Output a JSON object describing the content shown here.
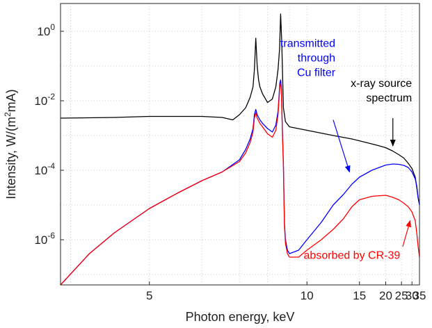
{
  "chart_data": {
    "type": "line",
    "title": "",
    "xlabel": "Photon energy, keV",
    "ylabel_main": "Intensity, W/(m",
    "ylabel_sup": "2",
    "ylabel_tail": "mA)",
    "x_scale": "reciprocal",
    "y_scale": "log",
    "xlim": [
      3.9,
      35
    ],
    "ylim_exp": [
      -7.3,
      0.8
    ],
    "grid": "dotted",
    "x_ticks": [
      {
        "v": 5,
        "label": "5"
      },
      {
        "v": 10,
        "label": "10"
      },
      {
        "v": 15,
        "label": "15"
      },
      {
        "v": 20,
        "label": "20"
      },
      {
        "v": 25,
        "label": "25"
      },
      {
        "v": 30,
        "label": "30"
      },
      {
        "v": 35,
        "label": "35"
      }
    ],
    "x_minor_grid": [
      4,
      6,
      7,
      8,
      9
    ],
    "y_ticks": [
      {
        "exp": 0,
        "base": "10",
        "sup": "0"
      },
      {
        "exp": -2,
        "base": "10",
        "sup": "-2"
      },
      {
        "exp": -4,
        "base": "10",
        "sup": "-4"
      },
      {
        "exp": -6,
        "base": "10",
        "sup": "-6"
      }
    ],
    "series": [
      {
        "key": "source",
        "color": "#000000",
        "x": [
          3.9,
          4.5,
          5.0,
          5.5,
          6.0,
          6.5,
          6.8,
          7.0,
          7.2,
          7.35,
          7.45,
          7.5,
          7.55,
          7.6,
          7.65,
          7.7,
          7.8,
          8.0,
          8.2,
          8.35,
          8.45,
          8.52,
          8.57,
          8.62,
          8.7,
          8.8,
          9.0,
          10.0,
          12.0,
          14.0,
          16.0,
          18.0,
          20.0,
          22.0,
          24.0,
          26.0,
          28.0,
          30.0,
          32.0,
          33.0,
          34.0,
          35.0
        ],
        "logy": [
          -2.5,
          -2.48,
          -2.45,
          -2.45,
          -2.45,
          -2.48,
          -2.55,
          -2.4,
          -2.2,
          -1.9,
          -1.6,
          -1.1,
          -0.2,
          -1.0,
          -1.4,
          -1.6,
          -1.8,
          -2.05,
          -1.95,
          -1.6,
          -1.1,
          -0.5,
          0.5,
          -0.3,
          -2.2,
          -2.6,
          -2.75,
          -2.85,
          -3.0,
          -3.1,
          -3.2,
          -3.28,
          -3.35,
          -3.45,
          -3.55,
          -3.65,
          -3.8,
          -3.95,
          -4.2,
          -4.5,
          -4.8,
          -5.0
        ]
      },
      {
        "key": "transmitted",
        "color": "#0000ff",
        "x": [
          3.9,
          4.2,
          4.5,
          5.0,
          5.5,
          6.0,
          6.5,
          7.0,
          7.2,
          7.35,
          7.45,
          7.5,
          7.55,
          7.6,
          7.7,
          7.8,
          8.0,
          8.2,
          8.35,
          8.45,
          8.5,
          8.53,
          8.57,
          8.6,
          8.65,
          8.7,
          8.72,
          8.75,
          8.8,
          8.9,
          9.0,
          9.5,
          10.0,
          11.0,
          12.0,
          13.0,
          14.0,
          15.0,
          17.0,
          20.0,
          22.0,
          24.0,
          26.0,
          28.0,
          30.0,
          32.0,
          33.0,
          34.0,
          35.0
        ],
        "logy": [
          -7.3,
          -6.4,
          -5.8,
          -5.1,
          -4.65,
          -4.3,
          -4.05,
          -3.7,
          -3.4,
          -3.1,
          -2.8,
          -2.4,
          -2.25,
          -2.4,
          -2.55,
          -2.65,
          -2.8,
          -2.9,
          -2.7,
          -2.3,
          -1.8,
          -1.5,
          -1.4,
          -1.6,
          -2.8,
          -3.8,
          -4.5,
          -5.5,
          -6.0,
          -6.3,
          -6.4,
          -6.3,
          -6.0,
          -5.5,
          -5.0,
          -4.7,
          -4.4,
          -4.2,
          -4.0,
          -3.85,
          -3.82,
          -3.83,
          -3.86,
          -3.92,
          -4.05,
          -4.25,
          -4.45,
          -4.8,
          -5.0
        ]
      },
      {
        "key": "absorbed",
        "color": "#ff0000",
        "x": [
          3.9,
          4.2,
          4.5,
          5.0,
          5.5,
          6.0,
          6.5,
          7.0,
          7.2,
          7.35,
          7.45,
          7.5,
          7.55,
          7.6,
          7.7,
          7.8,
          8.0,
          8.2,
          8.35,
          8.45,
          8.5,
          8.53,
          8.57,
          8.6,
          8.65,
          8.7,
          8.72,
          8.75,
          8.8,
          8.9,
          9.0,
          9.5,
          10.0,
          11.0,
          12.0,
          13.0,
          14.0,
          15.0,
          17.0,
          20.0,
          22.0,
          24.0,
          26.0,
          28.0,
          30.0,
          32.0,
          33.0,
          34.0,
          35.0
        ],
        "logy": [
          -7.3,
          -6.4,
          -5.8,
          -5.1,
          -4.65,
          -4.3,
          -4.05,
          -3.75,
          -3.5,
          -3.2,
          -2.9,
          -2.5,
          -2.35,
          -2.5,
          -2.65,
          -2.75,
          -2.95,
          -3.05,
          -2.85,
          -2.4,
          -1.9,
          -1.6,
          -1.5,
          -1.7,
          -2.9,
          -3.9,
          -4.6,
          -5.6,
          -6.1,
          -6.4,
          -6.5,
          -6.5,
          -6.3,
          -6.0,
          -5.7,
          -5.4,
          -5.05,
          -4.85,
          -4.75,
          -4.72,
          -4.78,
          -4.85,
          -4.95,
          -5.05,
          -5.2,
          -5.45,
          -5.8,
          -6.2,
          -6.5
        ]
      }
    ],
    "annotations": [
      {
        "key": "anno-transmitted",
        "lines": [
          "transmitted",
          "through",
          "Cu filter"
        ],
        "color": "#0000ff",
        "align": "end",
        "x": 12.2,
        "logy": -0.45,
        "arrow_from": [
          12.0,
          -2.55
        ],
        "arrow_to": [
          13.7,
          -4.05
        ]
      },
      {
        "key": "anno-source",
        "lines": [
          "x-ray source",
          "spectrum"
        ],
        "color": "#000000",
        "align": "end",
        "x": 30.0,
        "logy": -1.6,
        "arrow_from": [
          22.0,
          -2.5
        ],
        "arrow_to": [
          22.0,
          -3.3
        ]
      },
      {
        "key": "anno-absorbed",
        "lines": [
          "absorbed by CR-39"
        ],
        "color": "#ff0000",
        "align": "end",
        "x": 24.5,
        "logy": -6.55,
        "arrow_from": [
          25.5,
          -6.2
        ],
        "arrow_to": [
          29.0,
          -5.45
        ]
      }
    ]
  }
}
